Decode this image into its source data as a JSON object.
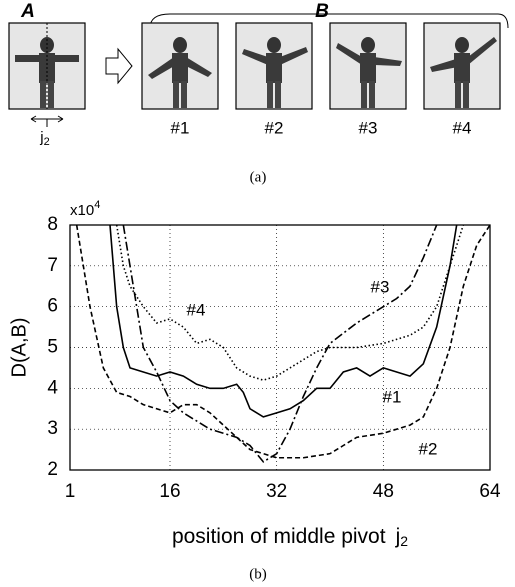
{
  "panel_a": {
    "label_a": "A",
    "label_b": "B",
    "frame_labels": [
      "#1",
      "#2",
      "#3",
      "#4"
    ],
    "pivot_symbol": "j",
    "pivot_subscript": "2",
    "caption": "(a)"
  },
  "chart_data": {
    "type": "line",
    "y_label": "D(A,B)",
    "y_multiplier": "x10",
    "y_multiplier_exponent": "4",
    "x_label": "position of middle pivot",
    "x_label_symbol": "j",
    "x_label_subscript": "2",
    "caption": "(b)",
    "xlim": [
      1,
      64
    ],
    "xticks": [
      1,
      16,
      32,
      48,
      64
    ],
    "ylim": [
      2,
      8
    ],
    "yticks": [
      2,
      3,
      4,
      5,
      6,
      7,
      8
    ],
    "grid": true,
    "series": [
      {
        "name": "#1",
        "color": "#000",
        "line_style": "solid",
        "x": [
          7,
          8,
          9,
          10,
          12,
          14,
          16,
          18,
          20,
          22,
          24,
          26,
          27,
          28,
          30,
          32,
          34,
          36,
          38,
          40,
          42,
          44,
          46,
          48,
          50,
          52,
          54,
          56,
          58,
          59
        ],
        "values": [
          8,
          6,
          5,
          4.5,
          4.4,
          4.3,
          4.4,
          4.3,
          4.1,
          4.0,
          4.0,
          4.1,
          3.9,
          3.5,
          3.3,
          3.4,
          3.5,
          3.7,
          4.0,
          4.0,
          4.4,
          4.5,
          4.3,
          4.5,
          4.4,
          4.3,
          4.6,
          5.5,
          7,
          8
        ]
      },
      {
        "name": "#2",
        "color": "#000",
        "line_style": "dashed",
        "x": [
          2,
          4,
          6,
          8,
          10,
          12,
          14,
          16,
          18,
          20,
          22,
          24,
          26,
          28,
          30,
          32,
          36,
          40,
          42,
          44,
          48,
          52,
          54,
          56,
          58,
          60,
          62,
          64
        ],
        "values": [
          8,
          6,
          4.5,
          3.9,
          3.8,
          3.6,
          3.5,
          3.4,
          3.6,
          3.6,
          3.4,
          3.1,
          2.8,
          2.5,
          2.4,
          2.3,
          2.3,
          2.4,
          2.6,
          2.8,
          2.9,
          3.1,
          3.3,
          4.0,
          5,
          6.5,
          7.5,
          8
        ]
      },
      {
        "name": "#3",
        "color": "#000",
        "line_style": "dashdot",
        "x": [
          9,
          10,
          11,
          12,
          14,
          16,
          18,
          20,
          22,
          24,
          26,
          28,
          30,
          32,
          34,
          36,
          38,
          40,
          44,
          48,
          50,
          52,
          54,
          56
        ],
        "values": [
          8,
          7,
          6,
          5,
          4.4,
          3.7,
          3.4,
          3.2,
          3.0,
          2.9,
          2.8,
          2.6,
          2.2,
          2.4,
          3.0,
          3.8,
          4.5,
          5.1,
          5.6,
          6.0,
          6.2,
          6.5,
          7.2,
          8
        ]
      },
      {
        "name": "#4",
        "color": "#000",
        "line_style": "dotted",
        "x": [
          8,
          9,
          10,
          12,
          14,
          16,
          18,
          20,
          22,
          24,
          26,
          28,
          30,
          32,
          34,
          36,
          38,
          40,
          44,
          48,
          52,
          54,
          56,
          58,
          60
        ],
        "values": [
          8,
          7,
          6.5,
          6.0,
          5.6,
          5.7,
          5.5,
          5.1,
          5.2,
          5.0,
          4.5,
          4.3,
          4.2,
          4.3,
          4.5,
          4.7,
          4.9,
          5.0,
          5.0,
          5.1,
          5.3,
          5.5,
          6.0,
          7.0,
          8
        ]
      }
    ]
  }
}
